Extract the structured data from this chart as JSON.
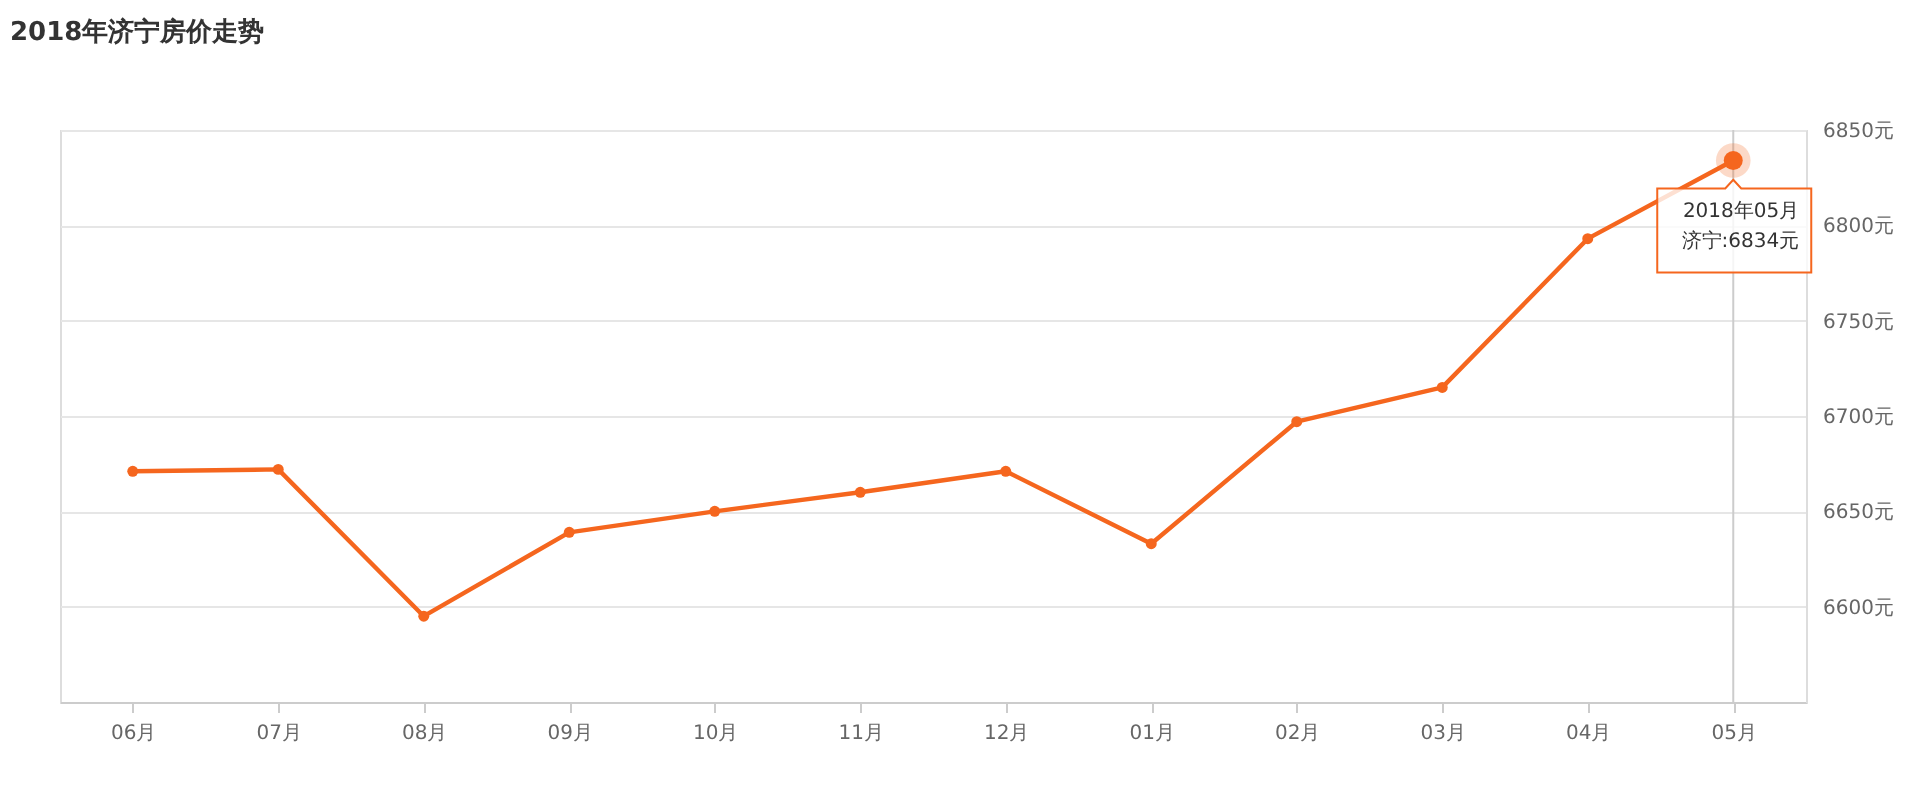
{
  "chart_data": {
    "type": "line",
    "title": "2018年济宁房价走势",
    "categories": [
      "06月",
      "07月",
      "08月",
      "09月",
      "10月",
      "11月",
      "12月",
      "01月",
      "02月",
      "03月",
      "04月",
      "05月"
    ],
    "values": [
      6671,
      6672,
      6595,
      6639,
      6650,
      6660,
      6671,
      6633,
      6697,
      6715,
      6793,
      6834
    ],
    "color": "#f5661e",
    "ylim": [
      6550,
      6850
    ],
    "yticks": [
      {
        "value": 6600,
        "label": "6600元"
      },
      {
        "value": 6650,
        "label": "6650元"
      },
      {
        "value": 6700,
        "label": "6700元"
      },
      {
        "value": 6750,
        "label": "6750元"
      },
      {
        "value": 6800,
        "label": "6800元"
      },
      {
        "value": 6850,
        "label": "6850元"
      }
    ],
    "grid": "y",
    "marker": "circle",
    "line_style": "solid",
    "ref_lines": [
      {
        "axis": "x",
        "value": "05月",
        "color": "#cccccc"
      }
    ],
    "annotations": [
      {
        "text": "2018年05月",
        "x": "05月",
        "y": 6834
      },
      "济宁:6834元"
    ]
  }
}
